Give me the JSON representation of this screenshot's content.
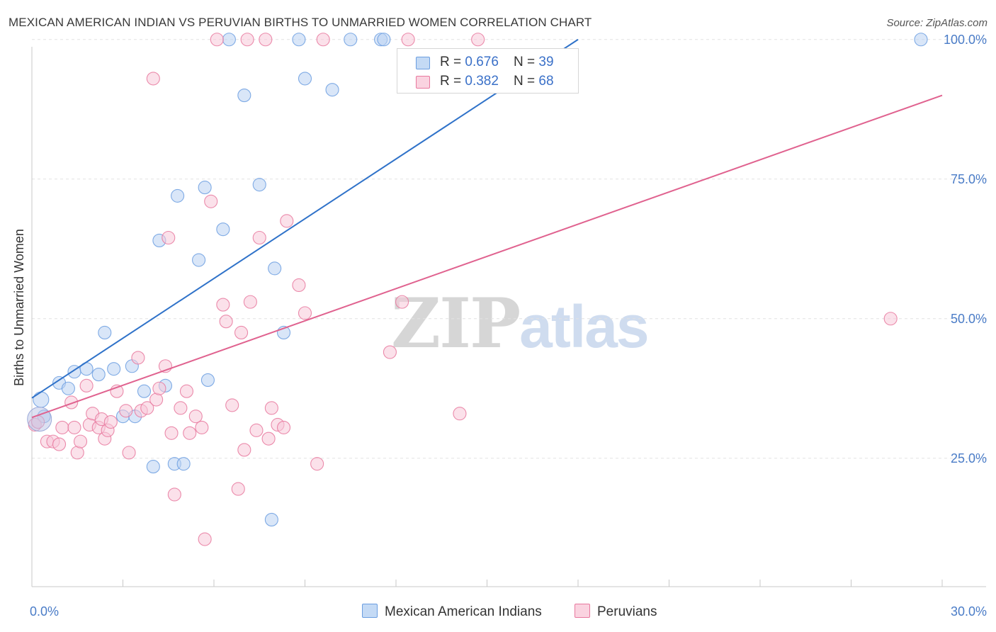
{
  "title": "MEXICAN AMERICAN INDIAN VS PERUVIAN BIRTHS TO UNMARRIED WOMEN CORRELATION CHART",
  "source": "Source: ZipAtlas.com",
  "watermark": {
    "zip": "ZIP",
    "atlas": "atlas"
  },
  "legend": {
    "rows": [
      {
        "r_label": "R = ",
        "r_value": "0.676",
        "n_label": "N = ",
        "n_value": "39",
        "color": "#a9c8ef"
      },
      {
        "r_label": "R = ",
        "r_value": "0.382",
        "n_label": "N = ",
        "n_value": "68",
        "color": "#f7bfd0"
      }
    ]
  },
  "bottom_legend": {
    "items": [
      {
        "label": "Mexican American Indians",
        "color": "#a9c8ef"
      },
      {
        "label": "Peruvians",
        "color": "#f7bfd0"
      }
    ]
  },
  "chart_data": {
    "type": "scatter",
    "xlabel": "",
    "ylabel": "Births to Unmarried Women",
    "xlim": [
      0,
      30
    ],
    "ylim": [
      2,
      102
    ],
    "x_tick_labels": [
      {
        "value": 0,
        "label": "0.0%"
      },
      {
        "value": 30,
        "label": "30.0%"
      }
    ],
    "y_tick_labels": [
      {
        "value": 25,
        "label": "25.0%"
      },
      {
        "value": 50,
        "label": "50.0%"
      },
      {
        "value": 75,
        "label": "75.0%"
      },
      {
        "value": 100,
        "label": "100.0%"
      }
    ],
    "grid": true,
    "series": [
      {
        "name": "Mexican American Indians",
        "color": "#6b9ee0",
        "fill": "#b9d2f2",
        "trend": {
          "x": [
            0.0,
            18.0
          ],
          "y": [
            35.8,
            100.0
          ]
        },
        "points": [
          [
            0.3,
            35.5
          ],
          [
            0.4,
            32.5
          ],
          [
            0.9,
            38.5
          ],
          [
            1.2,
            37.5
          ],
          [
            1.4,
            40.5
          ],
          [
            1.8,
            41.0
          ],
          [
            2.2,
            40.0
          ],
          [
            2.4,
            47.5
          ],
          [
            2.7,
            41.0
          ],
          [
            3.0,
            32.5
          ],
          [
            3.3,
            41.5
          ],
          [
            3.4,
            32.5
          ],
          [
            3.7,
            37.0
          ],
          [
            4.0,
            23.5
          ],
          [
            4.2,
            64.0
          ],
          [
            4.4,
            38.0
          ],
          [
            4.7,
            24.0
          ],
          [
            4.8,
            72.0
          ],
          [
            5.0,
            24.0
          ],
          [
            5.5,
            60.5
          ],
          [
            5.7,
            73.5
          ],
          [
            5.8,
            39.0
          ],
          [
            6.3,
            66.0
          ],
          [
            6.5,
            100.0
          ],
          [
            7.0,
            90.0
          ],
          [
            7.5,
            74.0
          ],
          [
            7.9,
            14.0
          ],
          [
            8.0,
            59.0
          ],
          [
            8.3,
            47.5
          ],
          [
            8.8,
            100.0
          ],
          [
            9.0,
            93.0
          ],
          [
            9.9,
            91.0
          ],
          [
            10.5,
            100.0
          ],
          [
            11.5,
            100.0
          ],
          [
            11.6,
            100.0
          ],
          [
            29.3,
            100.0
          ]
        ]
      },
      {
        "name": "Peruvians",
        "color": "#e8789e",
        "fill": "#f8c9d8",
        "trend": {
          "x": [
            0.0,
            30.0
          ],
          "y": [
            32.3,
            90.0
          ]
        },
        "points": [
          [
            0.1,
            31.0
          ],
          [
            0.2,
            31.5
          ],
          [
            0.5,
            28.0
          ],
          [
            0.7,
            28.0
          ],
          [
            0.9,
            27.5
          ],
          [
            1.0,
            30.5
          ],
          [
            1.3,
            35.0
          ],
          [
            1.4,
            30.5
          ],
          [
            1.5,
            26.0
          ],
          [
            1.6,
            28.0
          ],
          [
            1.8,
            38.0
          ],
          [
            1.9,
            31.0
          ],
          [
            2.0,
            33.0
          ],
          [
            2.2,
            30.5
          ],
          [
            2.3,
            32.0
          ],
          [
            2.4,
            28.5
          ],
          [
            2.5,
            30.0
          ],
          [
            2.6,
            31.5
          ],
          [
            2.8,
            37.0
          ],
          [
            3.1,
            33.5
          ],
          [
            3.2,
            26.0
          ],
          [
            3.5,
            43.0
          ],
          [
            3.6,
            33.5
          ],
          [
            3.8,
            34.0
          ],
          [
            4.0,
            93.0
          ],
          [
            4.1,
            35.5
          ],
          [
            4.2,
            37.5
          ],
          [
            4.4,
            41.5
          ],
          [
            4.5,
            64.5
          ],
          [
            4.6,
            29.5
          ],
          [
            4.7,
            18.5
          ],
          [
            4.9,
            34.0
          ],
          [
            5.1,
            37.0
          ],
          [
            5.2,
            29.5
          ],
          [
            5.4,
            32.5
          ],
          [
            5.6,
            30.5
          ],
          [
            5.7,
            10.5
          ],
          [
            5.9,
            71.0
          ],
          [
            6.1,
            100.0
          ],
          [
            6.3,
            52.5
          ],
          [
            6.4,
            49.5
          ],
          [
            6.6,
            34.5
          ],
          [
            6.8,
            19.5
          ],
          [
            6.9,
            47.5
          ],
          [
            7.0,
            26.5
          ],
          [
            7.1,
            100.0
          ],
          [
            7.2,
            53.0
          ],
          [
            7.4,
            30.0
          ],
          [
            7.5,
            64.5
          ],
          [
            7.7,
            100.0
          ],
          [
            7.8,
            28.5
          ],
          [
            7.9,
            34.0
          ],
          [
            8.1,
            31.0
          ],
          [
            8.3,
            30.5
          ],
          [
            8.4,
            67.5
          ],
          [
            8.8,
            56.0
          ],
          [
            9.0,
            51.0
          ],
          [
            9.4,
            24.0
          ],
          [
            9.6,
            100.0
          ],
          [
            11.8,
            44.0
          ],
          [
            12.2,
            53.0
          ],
          [
            12.4,
            100.0
          ],
          [
            14.1,
            33.0
          ],
          [
            14.7,
            100.0
          ],
          [
            28.3,
            50.0
          ]
        ]
      }
    ]
  }
}
